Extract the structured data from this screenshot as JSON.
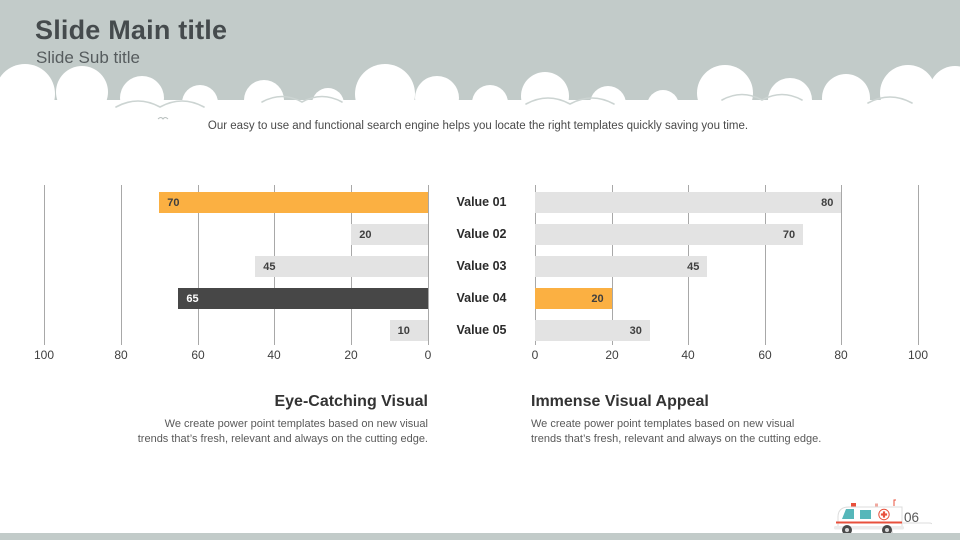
{
  "slide": {
    "title": "Slide Main title",
    "subtitle": "Slide Sub title",
    "intro": "Our easy to use and functional search engine helps you locate the right templates quickly saving you time.",
    "page_number": "06"
  },
  "chart_data": {
    "type": "bar",
    "variant": "tornado-butterfly-horizontal",
    "categories": [
      "Value 01",
      "Value 02",
      "Value 03",
      "Value 04",
      "Value 05"
    ],
    "series": [
      {
        "name": "left",
        "direction": "right-to-left",
        "values": [
          70,
          20,
          45,
          65,
          10
        ],
        "bar_colors": [
          "#fbb042",
          "#e3e3e3",
          "#e3e3e3",
          "#474747",
          "#e3e3e3"
        ],
        "label_colors": [
          "#3f3f3f",
          "#3f3f3f",
          "#3f3f3f",
          "#ffffff",
          "#3f3f3f"
        ],
        "axis_ticks": [
          100,
          80,
          60,
          40,
          20,
          0
        ]
      },
      {
        "name": "right",
        "direction": "left-to-right",
        "values": [
          80,
          70,
          45,
          20,
          30
        ],
        "bar_colors": [
          "#e3e3e3",
          "#e3e3e3",
          "#e3e3e3",
          "#fbb042",
          "#e3e3e3"
        ],
        "label_colors": [
          "#3f3f3f",
          "#3f3f3f",
          "#3f3f3f",
          "#3f3f3f",
          "#3f3f3f"
        ],
        "axis_ticks": [
          0,
          20,
          40,
          60,
          80,
          100
        ]
      }
    ],
    "xlim": [
      0,
      100
    ],
    "grid": true,
    "gridline_color": "#a8a8a8",
    "data_labels": true,
    "legend": "none"
  },
  "captions": {
    "left": {
      "heading": "Eye-Catching Visual",
      "body": "We create power point templates based on new visual trends that’s fresh, relevant and always on the cutting edge."
    },
    "right": {
      "heading": "Immense Visual Appeal",
      "body": "We create power point templates based on new visual trends that’s fresh, relevant and always on the cutting edge."
    }
  },
  "footer": {
    "icon": "ambulance-icon",
    "page_number": "06"
  },
  "colors": {
    "band": "#c2cbc9",
    "cloud_white": "#ffffff",
    "cloud_outline": "#ccd4d2",
    "accent_orange": "#fbb042",
    "bar_light_gray": "#e3e3e3",
    "bar_dark": "#474747",
    "gridline": "#a8a8a8",
    "title_text": "#454b4d",
    "body_text": "#595959",
    "ambulance_teal": "#56b7ba",
    "ambulance_red": "#e8503c"
  }
}
